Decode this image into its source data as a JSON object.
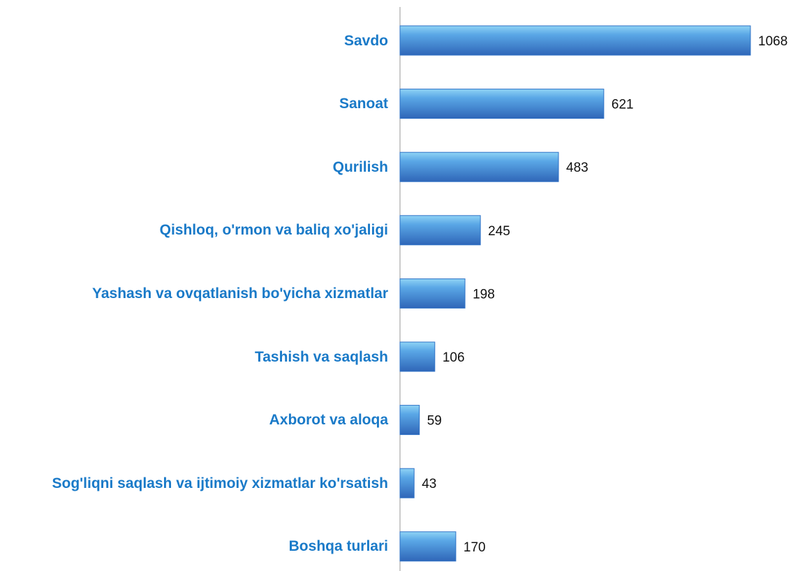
{
  "chart_data": {
    "type": "barh",
    "categories": [
      "Savdo",
      "Sanoat",
      "Qurilish",
      "Qishloq, o'rmon va baliq xo'jaligi",
      "Yashash va ovqatlanish bo'yicha xizmatlar",
      "Tashish va saqlash",
      "Axborot va aloqa",
      "Sog'liqni saqlash va ijtimoiy xizmatlar ko'rsatish",
      "Boshqa turlari"
    ],
    "values": [
      1068,
      621,
      483,
      245,
      198,
      106,
      59,
      43,
      170
    ],
    "color": "#2f72c6"
  }
}
